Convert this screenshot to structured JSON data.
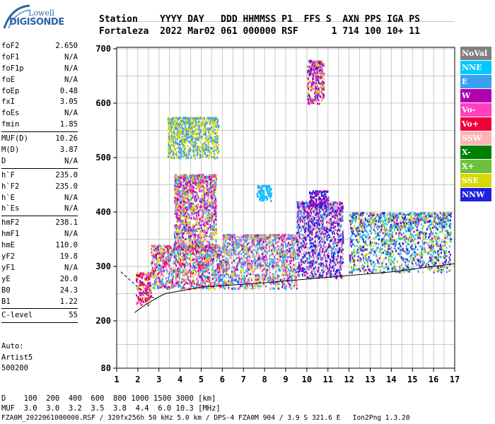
{
  "logo": {
    "line1": "Lowell",
    "line2": "DIGISONDE"
  },
  "header": {
    "row1": "Station    YYYY DAY   DDD HHMMSS P1  FFS S  AXN PPS IGA PS",
    "row2": "Fortaleza  2022 Mar02 061 000000 RSF      1 714 100 10+ 11"
  },
  "params": {
    "group1": [
      {
        "name": "foF2",
        "value": "2.650"
      },
      {
        "name": "foF1",
        "value": "N/A"
      },
      {
        "name": "foF1p",
        "value": "N/A"
      },
      {
        "name": "foE",
        "value": "N/A"
      },
      {
        "name": "foEp",
        "value": "0.48"
      },
      {
        "name": "fxI",
        "value": "3.05"
      },
      {
        "name": "foEs",
        "value": "N/A"
      },
      {
        "name": "fmin",
        "value": "1.85"
      }
    ],
    "group2": [
      {
        "name": "MUF(D)",
        "value": "10.26"
      },
      {
        "name": "M(D)",
        "value": "3.87"
      },
      {
        "name": "D",
        "value": "N/A"
      }
    ],
    "group3": [
      {
        "name": "h`F",
        "value": "235.0"
      },
      {
        "name": "h`F2",
        "value": "235.0"
      },
      {
        "name": "h`E",
        "value": "N/A"
      },
      {
        "name": "h`Es",
        "value": "N/A"
      }
    ],
    "group4": [
      {
        "name": "hmF2",
        "value": "238.1"
      },
      {
        "name": "hmF1",
        "value": "N/A"
      },
      {
        "name": "hmE",
        "value": "110.0"
      },
      {
        "name": "yF2",
        "value": "19.8"
      },
      {
        "name": "yF1",
        "value": "N/A"
      },
      {
        "name": "yE",
        "value": "20.0"
      },
      {
        "name": "B0",
        "value": "24.3"
      },
      {
        "name": "B1",
        "value": "1.22"
      }
    ],
    "group5": [
      {
        "name": "C-level",
        "value": "55"
      }
    ]
  },
  "auto": {
    "line1": "Auto:",
    "line2": "Artist5",
    "line3": "500200"
  },
  "footer": {
    "d_row": "D    100  200  400  600  800 1000 1500 3000 [km]",
    "muf_row": "MUF  3.0  3.0  3.2  3.5  3.8  4.4  6.0 10.3 [MHz]",
    "info": "FZA0M_2022061000000.RSF / 320fx256h 50 kHz 5.0 km / DPS-4 FZA0M 904 / 3.9 S 321.6 E   Ion2Png 1.3.20"
  },
  "legend": [
    {
      "label": "NoVal",
      "color": "#808080"
    },
    {
      "label": "NNE",
      "color": "#00c8ff"
    },
    {
      "label": "E",
      "color": "#3aa0f0"
    },
    {
      "label": "W",
      "color": "#b000b0"
    },
    {
      "label": "Vo-",
      "color": "#ff40c0"
    },
    {
      "label": "Vo+",
      "color": "#f0003c"
    },
    {
      "label": "SSW",
      "color": "#ffb4b4"
    },
    {
      "label": "X-",
      "color": "#008000"
    },
    {
      "label": "X+",
      "color": "#70c040"
    },
    {
      "label": "SSE",
      "color": "#d8d800"
    },
    {
      "label": "NNW",
      "color": "#2020e0"
    }
  ],
  "chart_data": {
    "type": "scatter",
    "xlabel": "",
    "ylabel": "",
    "xlim": [
      1,
      17
    ],
    "ylim": [
      80,
      900
    ],
    "xticks": [
      "1",
      "2",
      "3",
      "4",
      "5",
      "6",
      "7",
      "8",
      "9",
      "10",
      "11",
      "12",
      "13",
      "14",
      "15",
      "16",
      "17"
    ],
    "yticks": [
      "80",
      "200",
      "300",
      "400",
      "500",
      "600",
      "700",
      "800",
      "900"
    ],
    "grid": true,
    "trace_segments": [
      {
        "name": "F-trace lower",
        "points": [
          [
            1.85,
            215
          ],
          [
            2.3,
            228
          ],
          [
            2.8,
            240
          ],
          [
            3.3,
            250
          ],
          [
            5,
            262
          ],
          [
            8,
            270
          ],
          [
            11,
            280
          ],
          [
            14,
            290
          ],
          [
            17,
            305
          ]
        ]
      },
      {
        "name": "E-trace dashed",
        "points": [
          [
            1.2,
            290
          ],
          [
            2.4,
            248
          ],
          [
            2.9,
            240
          ]
        ]
      }
    ],
    "clusters": [
      {
        "x": [
          1.9,
          2.6
        ],
        "y": [
          230,
          290
        ],
        "classes": [
          "Vo+",
          "W",
          "Vo-",
          "SSE"
        ]
      },
      {
        "x": [
          2.6,
          6.0
        ],
        "y": [
          260,
          340
        ],
        "classes": [
          "E",
          "SSE",
          "SSW",
          "Vo-",
          "W",
          "NNE",
          "Vo+"
        ]
      },
      {
        "x": [
          3.7,
          5.7
        ],
        "y": [
          330,
          470
        ],
        "classes": [
          "W",
          "Vo-",
          "E",
          "SSE"
        ]
      },
      {
        "x": [
          3.4,
          5.8
        ],
        "y": [
          500,
          575
        ],
        "classes": [
          "SSE",
          "E"
        ]
      },
      {
        "x": [
          6.0,
          9.5
        ],
        "y": [
          260,
          360
        ],
        "classes": [
          "SSE",
          "E",
          "SSW",
          "NNE",
          "W",
          "Vo-"
        ]
      },
      {
        "x": [
          7.6,
          8.3
        ],
        "y": [
          420,
          450
        ],
        "classes": [
          "NNE",
          "E"
        ]
      },
      {
        "x": [
          9.5,
          11.7
        ],
        "y": [
          280,
          420
        ],
        "classes": [
          "NNW",
          "SSW",
          "E",
          "W"
        ]
      },
      {
        "x": [
          10.1,
          11.0
        ],
        "y": [
          410,
          440
        ],
        "classes": [
          "NNW",
          "W"
        ]
      },
      {
        "x": [
          10.0,
          10.8
        ],
        "y": [
          600,
          680
        ],
        "classes": [
          "Vo-",
          "W",
          "SSE",
          "NNW"
        ]
      },
      {
        "x": [
          12.0,
          16.8
        ],
        "y": [
          290,
          400
        ],
        "classes": [
          "NNW",
          "E",
          "NNE",
          "W",
          "SSE",
          "X+"
        ]
      }
    ]
  }
}
